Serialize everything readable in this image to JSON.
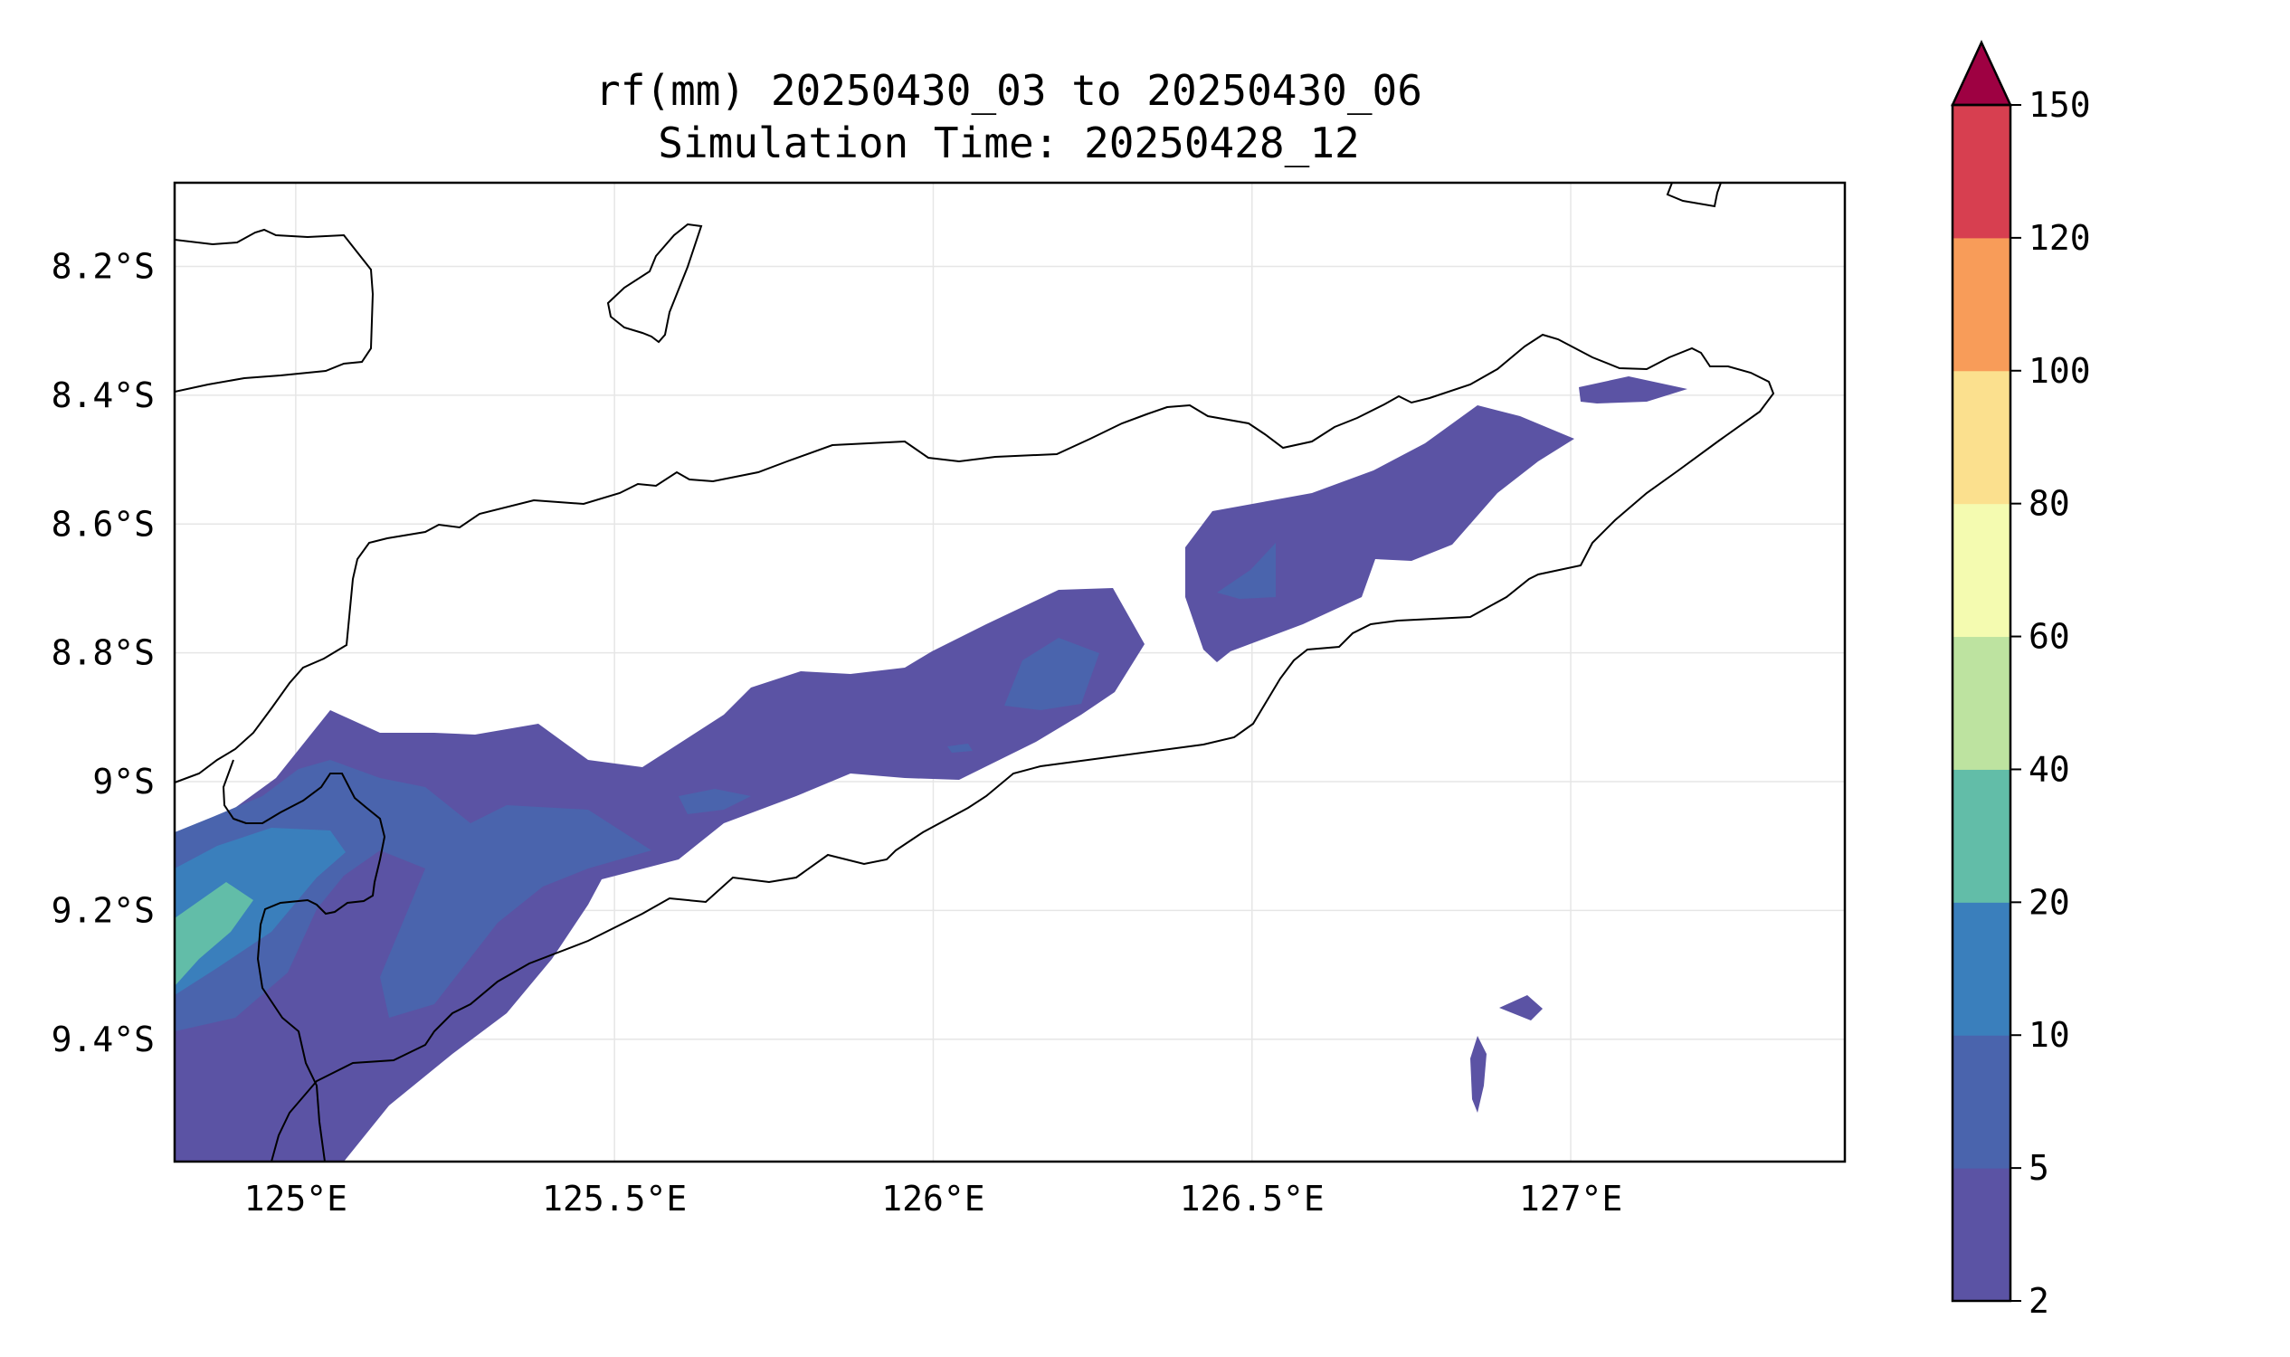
{
  "title": {
    "line1": "rf(mm) 20250430_03 to 20250430_06",
    "line2": "Simulation Time: 20250428_12"
  },
  "map": {
    "extent": {
      "lon_min": 124.81,
      "lon_max": 127.43,
      "lat_min": -9.59,
      "lat_max": -8.07
    },
    "x_ticks": [
      {
        "lon": 125.0,
        "label": "125°E"
      },
      {
        "lon": 125.5,
        "label": "125.5°E"
      },
      {
        "lon": 126.0,
        "label": "126°E"
      },
      {
        "lon": 126.5,
        "label": "126.5°E"
      },
      {
        "lon": 127.0,
        "label": "127°E"
      }
    ],
    "y_ticks": [
      {
        "lat": -8.2,
        "label": "8.2°S"
      },
      {
        "lat": -8.4,
        "label": "8.4°S"
      },
      {
        "lat": -8.6,
        "label": "8.6°S"
      },
      {
        "lat": -8.8,
        "label": "8.8°S"
      },
      {
        "lat": -9.0,
        "label": "9°S"
      },
      {
        "lat": -9.2,
        "label": "9.2°S"
      },
      {
        "lat": -9.4,
        "label": "9.4°S"
      }
    ],
    "grid": true
  },
  "colorbar": {
    "ticks": [
      "2",
      "5",
      "10",
      "20",
      "40",
      "60",
      "80",
      "100",
      "120",
      "150"
    ],
    "colors": [
      "#5b53a4",
      "#4a64ad",
      "#3a7fbc",
      "#62bda8",
      "#bde3a0",
      "#f4fbb0",
      "#fbe08e",
      "#f89c59",
      "#d73f50"
    ],
    "extend_color": "#9e0142",
    "extend": "max"
  },
  "colors": {
    "level_2_5": "#5b53a4",
    "level_5_10": "#4a64ad",
    "level_10_20": "#3a7fbc",
    "level_20_40": "#62bda8",
    "coastline": "#000000",
    "grid": "#e6e6e6"
  }
}
